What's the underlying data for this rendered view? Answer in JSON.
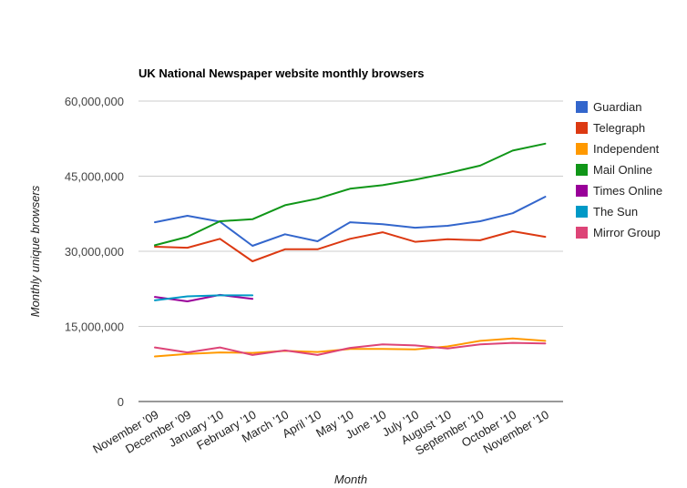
{
  "chart_data": {
    "type": "line",
    "title": "UK National Newspaper website monthly browsers",
    "xlabel": "Month",
    "ylabel": "Monthly unique browsers",
    "ylim": [
      0,
      60000000
    ],
    "yticks": [
      0,
      15000000,
      30000000,
      45000000,
      60000000
    ],
    "ytick_labels": [
      "0",
      "15,000,000",
      "30,000,000",
      "45,000,000",
      "60,000,000"
    ],
    "grid": true,
    "legend_position": "right",
    "categories": [
      "November '09",
      "December '09",
      "January '10",
      "February '10",
      "March '10",
      "April '10",
      "May '10",
      "June '10",
      "July '10",
      "August '10",
      "September '10",
      "October '10",
      "November '10"
    ],
    "series": [
      {
        "name": "Guardian",
        "color": "#3366cc",
        "values": [
          35800000,
          37100000,
          35900000,
          31100000,
          33400000,
          32000000,
          35800000,
          35400000,
          34700000,
          35100000,
          36000000,
          37600000,
          40900000
        ]
      },
      {
        "name": "Telegraph",
        "color": "#dc3912",
        "values": [
          30900000,
          30700000,
          32500000,
          28000000,
          30400000,
          30400000,
          32500000,
          33800000,
          31900000,
          32400000,
          32200000,
          34000000,
          32900000
        ]
      },
      {
        "name": "Independent",
        "color": "#ff9900",
        "values": [
          9000000,
          9500000,
          9800000,
          9700000,
          10100000,
          9900000,
          10500000,
          10500000,
          10400000,
          11000000,
          12100000,
          12600000,
          12100000
        ]
      },
      {
        "name": "Mail Online",
        "color": "#109618",
        "values": [
          31200000,
          32900000,
          36000000,
          36400000,
          39200000,
          40500000,
          42500000,
          43200000,
          44300000,
          45600000,
          47100000,
          50100000,
          51500000
        ]
      },
      {
        "name": "Times Online",
        "color": "#990099",
        "values": [
          20900000,
          20000000,
          21300000,
          20500000,
          null,
          null,
          null,
          null,
          null,
          null,
          null,
          null,
          null
        ]
      },
      {
        "name": "The Sun",
        "color": "#0099c6",
        "values": [
          20200000,
          21000000,
          21200000,
          21200000,
          null,
          null,
          null,
          null,
          null,
          null,
          null,
          null,
          null
        ]
      },
      {
        "name": "Mirror Group",
        "color": "#dd4477",
        "values": [
          10800000,
          9800000,
          10800000,
          9300000,
          10200000,
          9300000,
          10700000,
          11400000,
          11200000,
          10600000,
          11400000,
          11700000,
          11600000
        ]
      }
    ]
  }
}
